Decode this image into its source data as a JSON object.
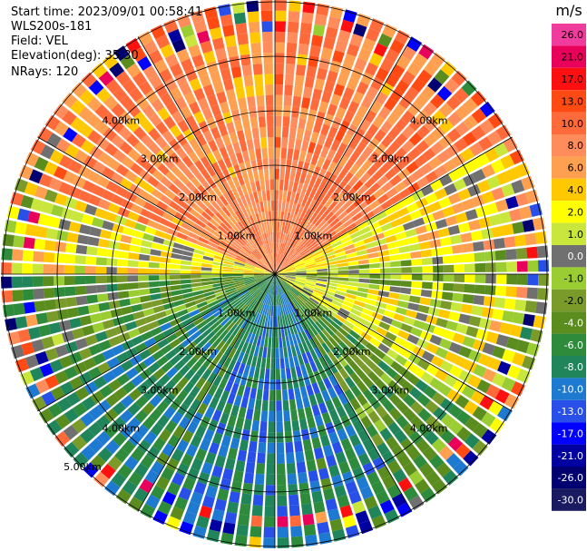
{
  "header": {
    "start_time": "Start time: 2023/09/01 00:58:41",
    "instrument": "WLS200s-181",
    "field": "Field: VEL",
    "elevation": "Elevation(deg): 35.30",
    "nrays": "NRays: 120"
  },
  "colorbar": {
    "unit": "m/s",
    "ticks": [
      "26.0",
      "21.0",
      "17.0",
      "13.0",
      "10.0",
      "8.0",
      "6.0",
      "4.0",
      "2.0",
      "1.0",
      "0.0",
      "-1.0",
      "-2.0",
      "-4.0",
      "-6.0",
      "-8.0",
      "-10.0",
      "-13.0",
      "-17.0",
      "-21.0",
      "-26.0",
      "-30.0"
    ],
    "colors": [
      "#f03c9c",
      "#e8005a",
      "#ff1010",
      "#ff4a14",
      "#ff6a3a",
      "#ff8c5a",
      "#ffa050",
      "#ffc800",
      "#ffff00",
      "#c8e63c",
      "#707070",
      "#9acd32",
      "#7a9a2a",
      "#5a8c1e",
      "#2e8b3c",
      "#20855a",
      "#1e7ad0",
      "#2850e8",
      "#0000ff",
      "#0000a0",
      "#000070",
      "#1a1a60"
    ]
  },
  "chart_data": {
    "type": "ppi",
    "field": "VEL",
    "units": "m/s",
    "range_rings_km": [
      1.0,
      2.0,
      3.0,
      4.0,
      5.0
    ],
    "ring_labels": [
      "1.00km",
      "2.00km",
      "3.00km",
      "4.00km",
      "5.00km"
    ],
    "nrays": 120,
    "elevation_deg": 35.3,
    "velocity_sectors": [
      {
        "azimuth_from": 290,
        "azimuth_to": 360,
        "value": 9
      },
      {
        "azimuth_from": 0,
        "azimuth_to": 60,
        "value": 10
      },
      {
        "azimuth_from": 60,
        "azimuth_to": 85,
        "value": 4
      },
      {
        "azimuth_from": 85,
        "azimuth_to": 100,
        "value": 0
      },
      {
        "azimuth_from": 100,
        "azimuth_to": 125,
        "value": 2
      },
      {
        "azimuth_from": 125,
        "azimuth_to": 150,
        "value": -4
      },
      {
        "azimuth_from": 150,
        "azimuth_to": 205,
        "value": -8
      },
      {
        "azimuth_from": 205,
        "azimuth_to": 245,
        "value": -6
      },
      {
        "azimuth_from": 245,
        "azimuth_to": 270,
        "value": -3
      },
      {
        "azimuth_from": 270,
        "azimuth_to": 290,
        "value": 3
      }
    ]
  }
}
